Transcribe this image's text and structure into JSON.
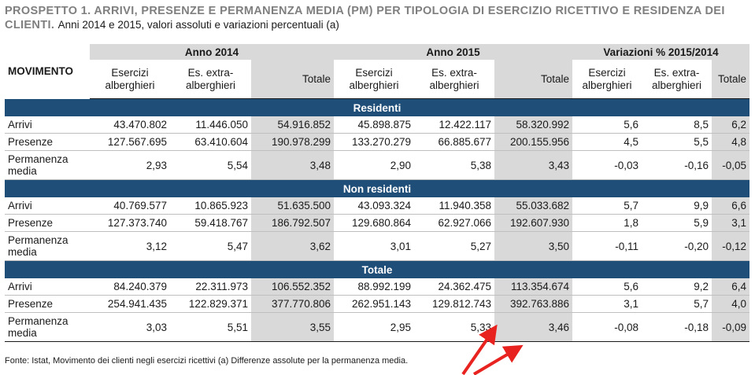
{
  "title": {
    "main": "PROSPETTO 1. ARRIVI, PRESENZE E PERMANENZA MEDIA (PM) PER TIPOLOGIA DI ESERCIZIO RICETTIVO E RESIDENZA DEI CLIENTI.",
    "sub": "Anni 2014 e 2015, valori assoluti e variazioni percentuali (a)"
  },
  "table": {
    "movimento_label": "MOVIMENTO",
    "groups": [
      "Anno 2014",
      "Anno 2015",
      "Variazioni % 2015/2014"
    ],
    "columns": [
      "Esercizi alberghieri",
      "Es. extra-alberghieri",
      "Totale",
      "Esercizi alberghieri",
      "Es. extra-alberghieri",
      "Totale",
      "Esercizi alberghieri",
      "Es. extra-alberghieri",
      "Totale"
    ],
    "sections": [
      {
        "title": "Residenti",
        "rows": [
          {
            "label": "Arrivi",
            "values": [
              "43.470.802",
              "11.446.050",
              "54.916.852",
              "45.898.875",
              "12.422.117",
              "58.320.992",
              "5,6",
              "8,5",
              "6,2"
            ]
          },
          {
            "label": "Presenze",
            "values": [
              "127.567.695",
              "63.410.604",
              "190.978.299",
              "133.270.279",
              "66.885.677",
              "200.155.956",
              "4,5",
              "5,5",
              "4,8"
            ]
          },
          {
            "label": "Permanenza media",
            "values": [
              "2,93",
              "5,54",
              "3,48",
              "2,90",
              "5,38",
              "3,43",
              "-0,03",
              "-0,16",
              "-0,05"
            ]
          }
        ]
      },
      {
        "title": "Non residenti",
        "rows": [
          {
            "label": "Arrivi",
            "values": [
              "40.769.577",
              "10.865.923",
              "51.635.500",
              "43.093.324",
              "11.940.358",
              "55.033.682",
              "5,7",
              "9,9",
              "6,6"
            ]
          },
          {
            "label": "Presenze",
            "values": [
              "127.373.740",
              "59.418.767",
              "186.792.507",
              "129.680.864",
              "62.927.066",
              "192.607.930",
              "1,8",
              "5,9",
              "3,1"
            ]
          },
          {
            "label": "Permanenza media",
            "values": [
              "3,12",
              "5,47",
              "3,62",
              "3,01",
              "5,27",
              "3,50",
              "-0,11",
              "-0,20",
              "-0,12"
            ]
          }
        ]
      },
      {
        "title": "Totale",
        "rows": [
          {
            "label": "Arrivi",
            "values": [
              "84.240.379",
              "22.311.973",
              "106.552.352",
              "88.992.199",
              "24.362.475",
              "113.354.674",
              "5,6",
              "9,2",
              "6,4"
            ]
          },
          {
            "label": "Presenze",
            "values": [
              "254.941.435",
              "122.829.371",
              "377.770.806",
              "262.951.143",
              "129.812.743",
              "392.763.886",
              "3,1",
              "5,7",
              "4,0"
            ]
          },
          {
            "label": "Permanenza media",
            "values": [
              "3,03",
              "5,51",
              "3,55",
              "2,95",
              "5,33",
              "3,46",
              "-0,08",
              "-0,18",
              "-0,09"
            ]
          }
        ]
      }
    ]
  },
  "note": "Fonte: Istat, Movimento dei clienti negli esercizi ricettivi (a) Differenze assolute per la permanenza media.",
  "colors": {
    "section_bar": "#1f4e79",
    "shade": "#d9d9d9",
    "title_gray": "#7f7f7f",
    "arrow": "#e8231f"
  },
  "annotations": [
    "arrow-icon",
    "arrow-icon"
  ]
}
